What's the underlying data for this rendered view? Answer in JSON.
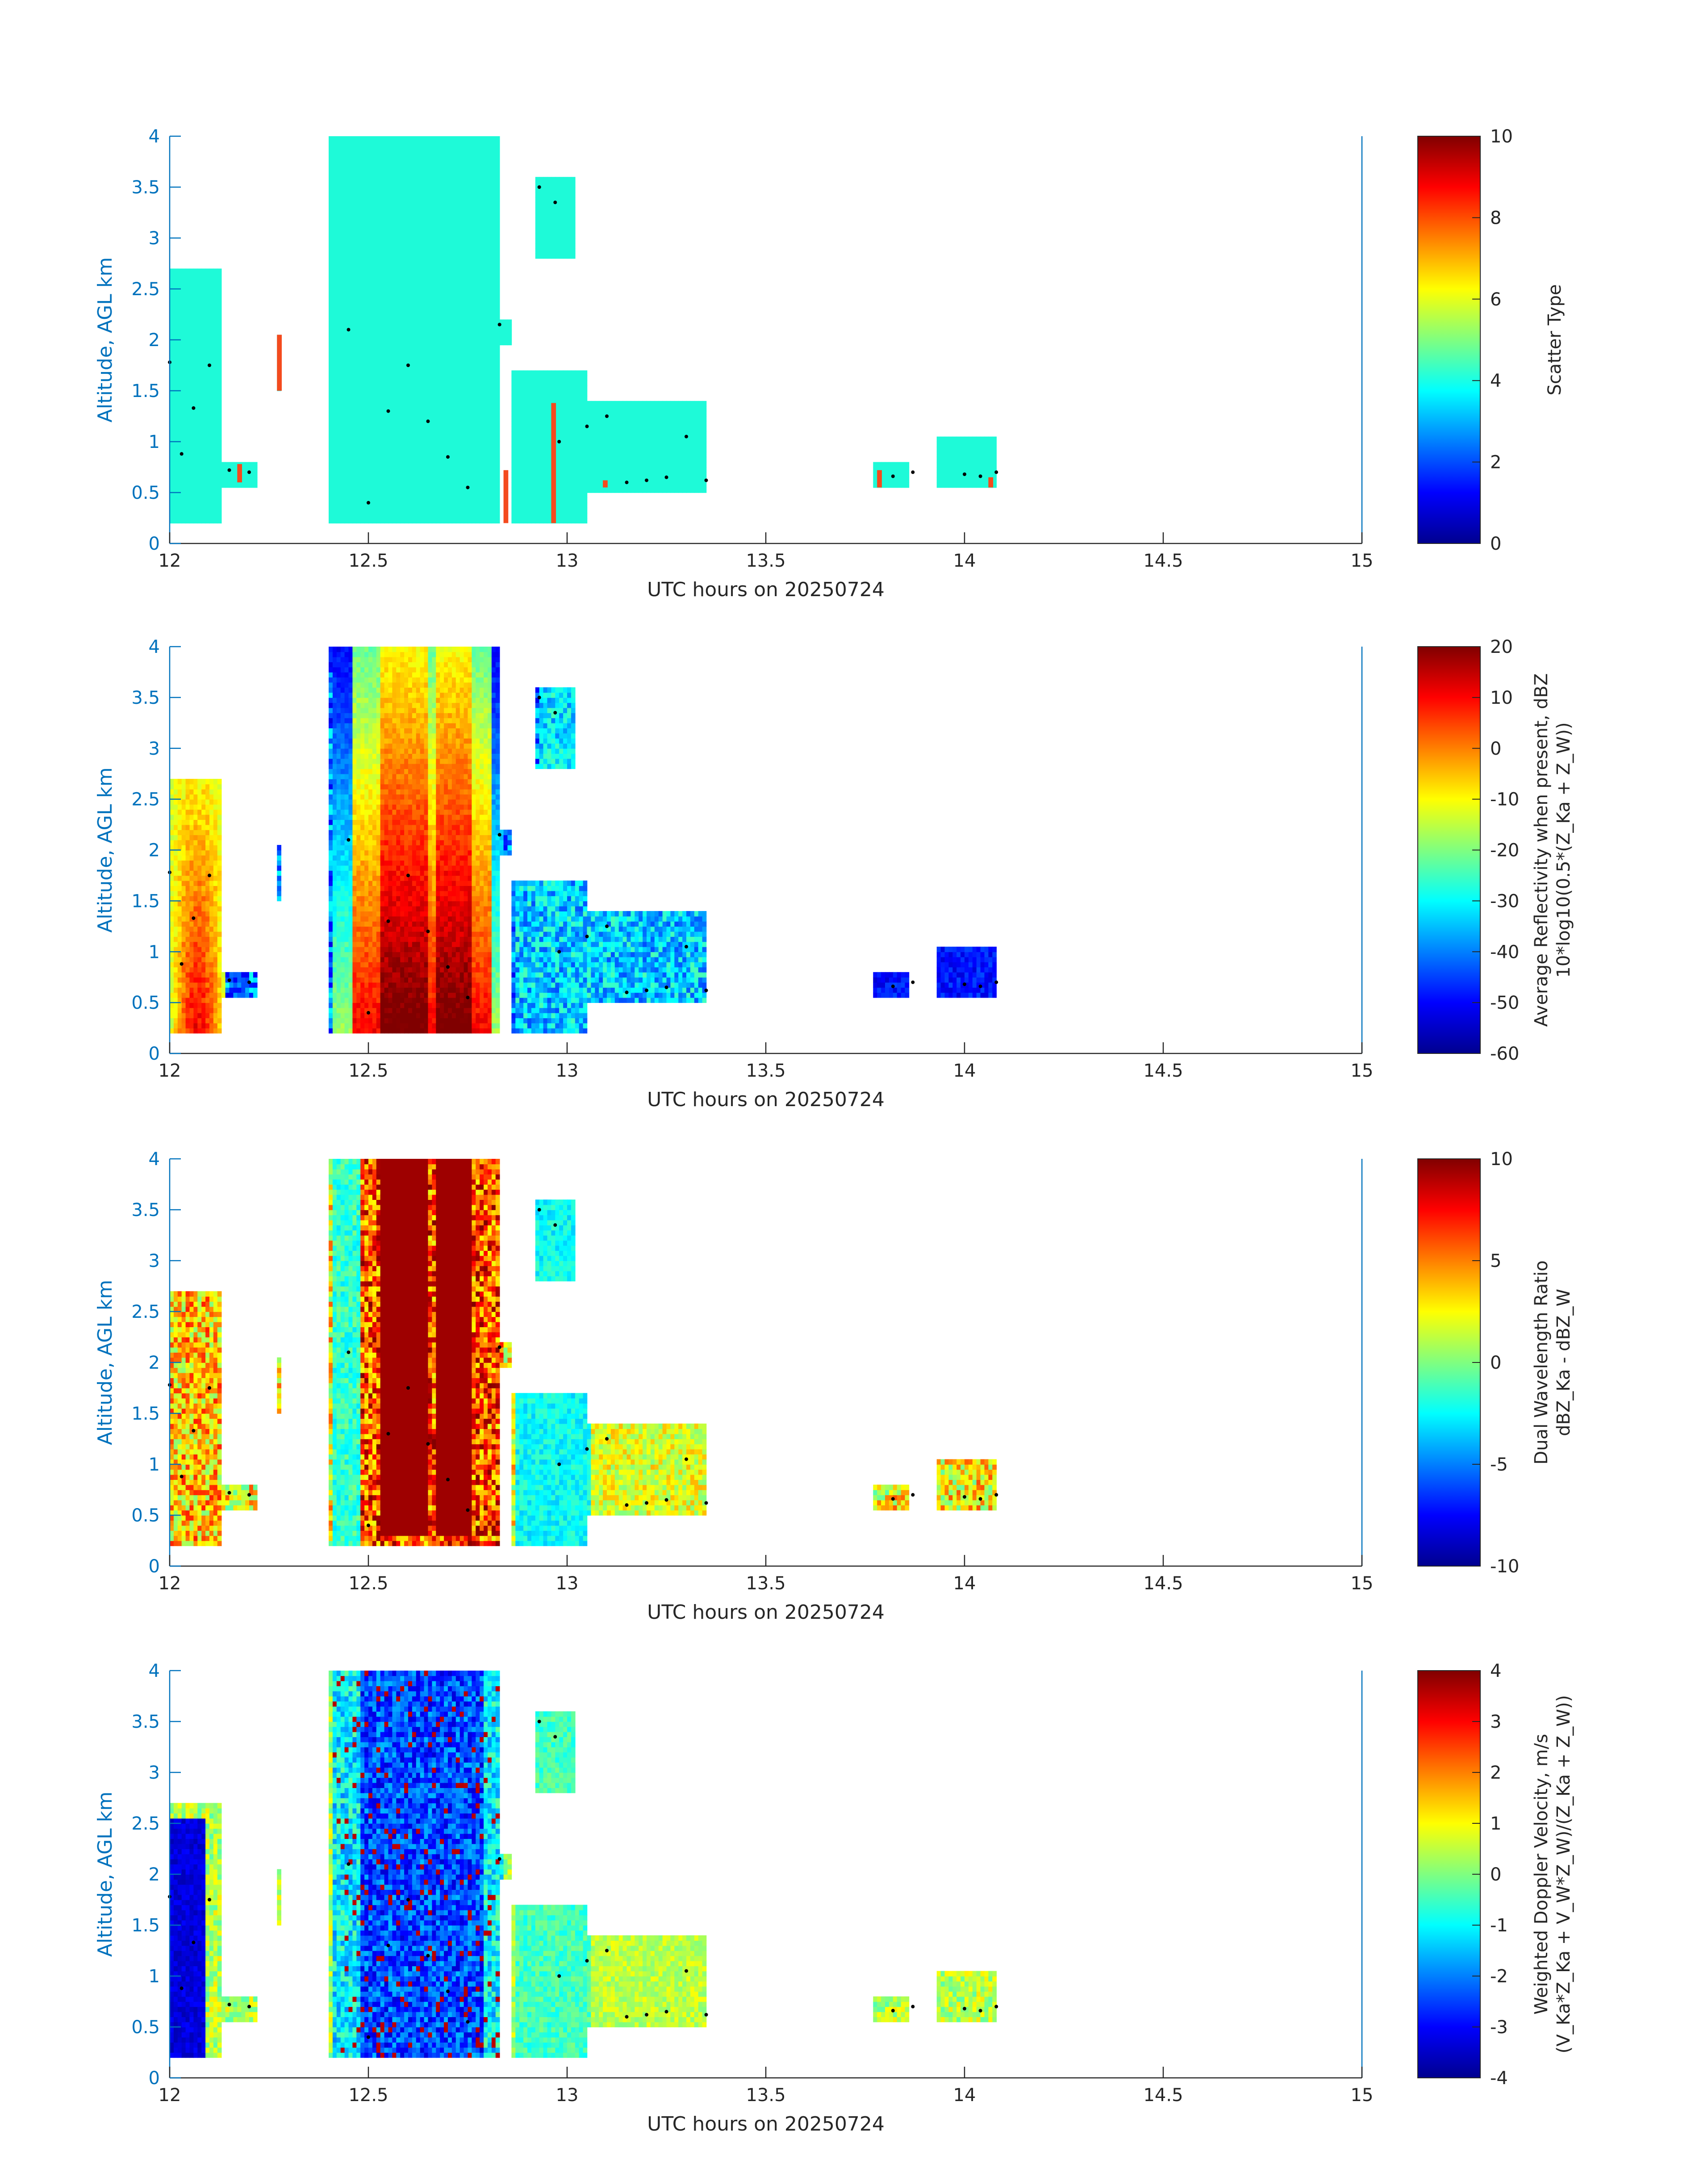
{
  "chart_data": [
    {
      "type": "heatmap",
      "id": "scatter-type",
      "xlabel": "UTC hours on 20250724",
      "ylabel": "Altitude, AGL km",
      "xlim": [
        12,
        15
      ],
      "ylim": [
        0,
        4
      ],
      "xticks": [
        "12",
        "12.5",
        "13",
        "13.5",
        "14",
        "14.5",
        "15"
      ],
      "yticks": [
        "0",
        "0.5",
        "1",
        "1.5",
        "2",
        "2.5",
        "3",
        "3.5",
        "4"
      ],
      "colorbar": {
        "label": "Scatter Type",
        "label2": "",
        "range": [
          0,
          10
        ],
        "ticks": [
          "0",
          "2",
          "4",
          "6",
          "8",
          "10"
        ]
      }
    },
    {
      "type": "heatmap",
      "id": "reflectivity",
      "xlabel": "UTC hours on 20250724",
      "ylabel": "Altitude, AGL km",
      "xlim": [
        12,
        15
      ],
      "ylim": [
        0,
        4
      ],
      "xticks": [
        "12",
        "12.5",
        "13",
        "13.5",
        "14",
        "14.5",
        "15"
      ],
      "yticks": [
        "0",
        "0.5",
        "1",
        "1.5",
        "2",
        "2.5",
        "3",
        "3.5",
        "4"
      ],
      "colorbar": {
        "label": "Average Reflectivity when present, dBZ",
        "label2": "10*log10(0.5*(Z_Ka + Z_W))",
        "range": [
          -60,
          20
        ],
        "ticks": [
          "-60",
          "-50",
          "-40",
          "-30",
          "-20",
          "-10",
          "0",
          "10",
          "20"
        ]
      }
    },
    {
      "type": "heatmap",
      "id": "dwr",
      "xlabel": "UTC hours on 20250724",
      "ylabel": "Altitude, AGL km",
      "xlim": [
        12,
        15
      ],
      "ylim": [
        0,
        4
      ],
      "xticks": [
        "12",
        "12.5",
        "13",
        "13.5",
        "14",
        "14.5",
        "15"
      ],
      "yticks": [
        "0",
        "0.5",
        "1",
        "1.5",
        "2",
        "2.5",
        "3",
        "3.5",
        "4"
      ],
      "colorbar": {
        "label": "Dual Wavelength Ratio",
        "label2": "dBZ_Ka - dBZ_W",
        "range": [
          -10,
          10
        ],
        "ticks": [
          "-10",
          "-5",
          "0",
          "5",
          "10"
        ]
      }
    },
    {
      "type": "heatmap",
      "id": "doppler",
      "xlabel": "UTC hours on 20250724",
      "ylabel": "Altitude, AGL km",
      "xlim": [
        12,
        15
      ],
      "ylim": [
        0,
        4
      ],
      "xticks": [
        "12",
        "12.5",
        "13",
        "13.5",
        "14",
        "14.5",
        "15"
      ],
      "yticks": [
        "0",
        "0.5",
        "1",
        "1.5",
        "2",
        "2.5",
        "3",
        "3.5",
        "4"
      ],
      "colorbar": {
        "label": "Weighted Doppler Velocity, m/s",
        "label2": "(V_Ka*Z_Ka + V_W*Z_W)/(Z_Ka + Z_W))",
        "range": [
          -4,
          4
        ],
        "ticks": [
          "-4",
          "-3",
          "-2",
          "-1",
          "0",
          "1",
          "2",
          "3",
          "4"
        ]
      }
    }
  ],
  "shared": {
    "cloud_regions": [
      {
        "t0": 12.0,
        "t1": 12.13,
        "z0": 0.2,
        "z1": 2.7
      },
      {
        "t0": 12.12,
        "t1": 12.22,
        "z0": 0.55,
        "z1": 0.78
      },
      {
        "t0": 12.27,
        "t1": 12.28,
        "z0": 1.5,
        "z1": 2.05
      },
      {
        "t0": 12.4,
        "t1": 12.83,
        "z0": 0.2,
        "z1": 4.0
      },
      {
        "t0": 12.83,
        "t1": 12.86,
        "z0": 1.95,
        "z1": 2.2
      },
      {
        "t0": 12.86,
        "t1": 13.05,
        "z0": 0.2,
        "z1": 1.7
      },
      {
        "t0": 12.92,
        "t1": 13.02,
        "z0": 2.8,
        "z1": 3.6
      },
      {
        "t0": 13.05,
        "t1": 13.35,
        "z0": 0.5,
        "z1": 1.4
      },
      {
        "t0": 13.77,
        "t1": 13.86,
        "z0": 0.55,
        "z1": 0.8
      },
      {
        "t0": 13.93,
        "t1": 14.08,
        "z0": 0.55,
        "z1": 1.05
      }
    ]
  }
}
